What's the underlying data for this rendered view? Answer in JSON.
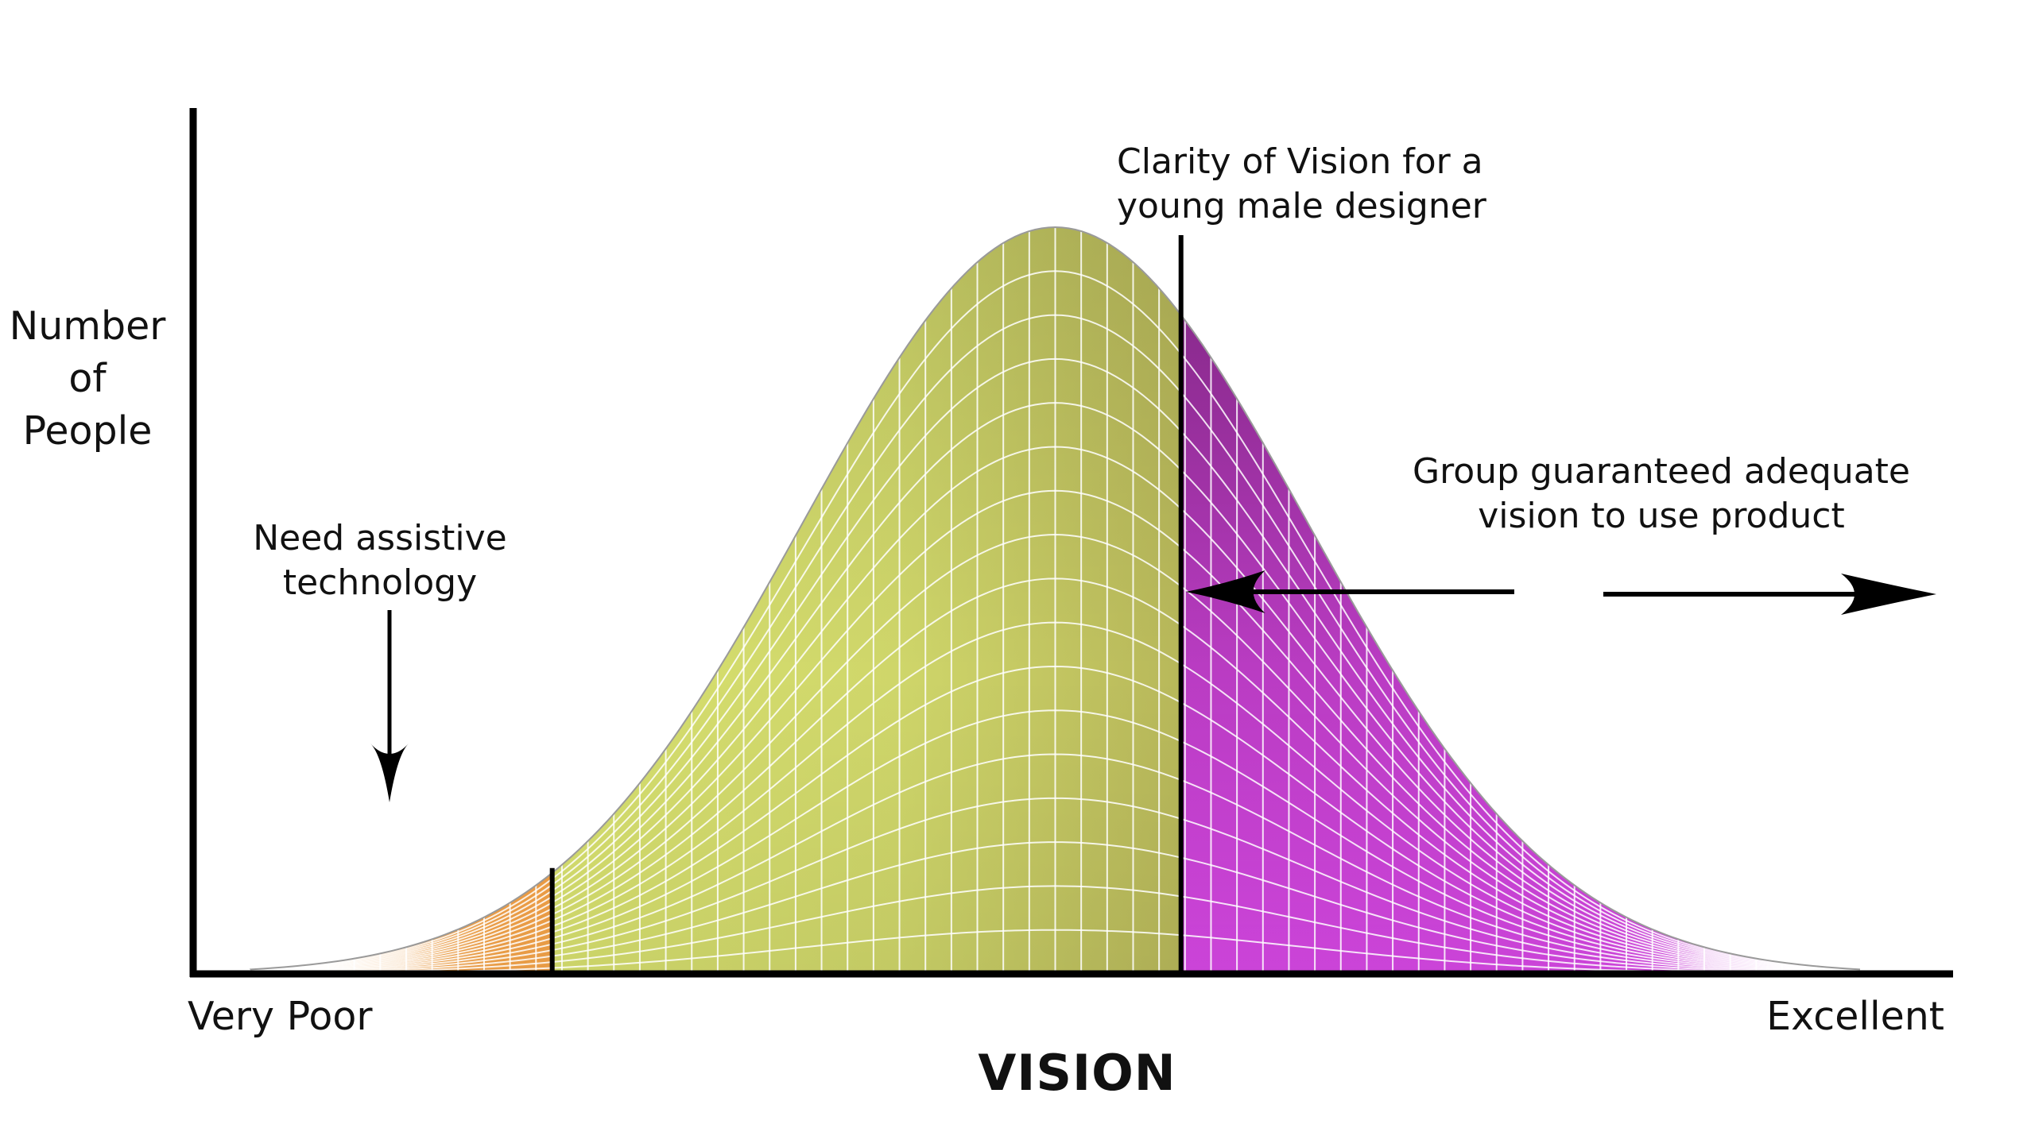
{
  "chart_data": {
    "type": "area",
    "ylabel_lines": [
      "Number",
      "of",
      "People"
    ],
    "xlabel": "VISION",
    "x_ticks": {
      "left": "Very Poor",
      "right": "Excellent"
    },
    "distribution": {
      "shape": "normal",
      "mean": 0,
      "sd": 1,
      "x_range": [
        -3.2,
        3.2
      ]
    },
    "regions": [
      {
        "from": -3.2,
        "to": -2.0,
        "color": "#f29a3e"
      },
      {
        "from": -2.0,
        "to": 0.5,
        "color": "#d9e26a"
      },
      {
        "from": 0.5,
        "to": 3.2,
        "color": "#c436d6"
      }
    ],
    "thresholds": [
      -2.0,
      0.5
    ],
    "grid": true,
    "annotations": {
      "designer": [
        "Clarity of Vision for a",
        "young male designer"
      ],
      "assistive": [
        "Need assistive",
        "technology"
      ],
      "group": [
        "Group guaranteed adequate",
        "vision to use product"
      ]
    }
  },
  "colors": {
    "axis": "#000000",
    "grid": "#ffffff",
    "shadow": "#3a2a10"
  }
}
